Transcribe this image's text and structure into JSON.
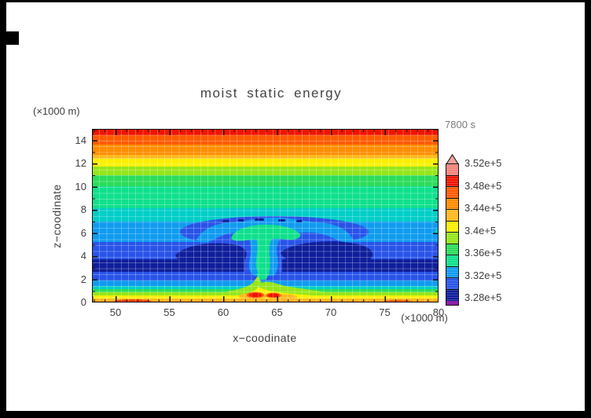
{
  "title": "moist static energy",
  "time_label": "7800 s",
  "axes": {
    "x": {
      "label": "x−coodinate",
      "unit_label": "(×1000 m)",
      "ticks": [
        "50",
        "55",
        "60",
        "65",
        "70",
        "75",
        "80"
      ]
    },
    "y": {
      "label": "z−coodinate",
      "unit_label": "(×1000 m)",
      "ticks": [
        "0",
        "2",
        "4",
        "6",
        "8",
        "10",
        "12",
        "14"
      ]
    }
  },
  "colorbar": {
    "labels": [
      "3.52e+5",
      "3.48e+5",
      "3.44e+5",
      "3.4e+5",
      "3.36e+5",
      "3.32e+5",
      "3.28e+5"
    ],
    "cap": {
      "color": "#F4A49E",
      "meaning": "> 3.52e+5"
    },
    "segments_top_to_bottom": [
      {
        "color": "#F2837B",
        "range": "3.50e+5 – 3.52e+5"
      },
      {
        "color": "#F01400",
        "range": "3.48e+5 – 3.50e+5"
      },
      {
        "color": "#FF5A00",
        "range": "3.46e+5 – 3.48e+5"
      },
      {
        "color": "#FF8C00",
        "range": "3.44e+5 – 3.46e+5"
      },
      {
        "color": "#FFB91E",
        "range": "3.42e+5 – 3.44e+5"
      },
      {
        "color": "#FAF000",
        "range": "3.40e+5 – 3.42e+5"
      },
      {
        "color": "#96E619",
        "range": "3.38e+5 – 3.40e+5"
      },
      {
        "color": "#2BDC5A",
        "range": "3.36e+5 – 3.38e+5"
      },
      {
        "color": "#0FE08C",
        "range": "3.34e+5 – 3.36e+5"
      },
      {
        "color": "#0F9BF0",
        "range": "3.32e+5 – 3.34e+5"
      },
      {
        "color": "#2853E8",
        "range": "3.30e+5 – 3.32e+5"
      },
      {
        "color": "#0F1E9B",
        "range": "3.28e+5 – 3.30e+5"
      }
    ],
    "stub": {
      "color": "#8C1EA8",
      "meaning": "< 3.28e+5"
    }
  },
  "chart_data": {
    "type": "heatmap",
    "subtype": "filled-contour",
    "title": "moist static energy",
    "time": "7800 s",
    "xlabel": "x−coodinate (×1000 m)",
    "ylabel": "z−coodinate (×1000 m)",
    "xlim": [
      47.8,
      80
    ],
    "ylim": [
      0,
      15
    ],
    "x_ticks": [
      50,
      55,
      60,
      65,
      70,
      75,
      80
    ],
    "y_ticks": [
      0,
      2,
      4,
      6,
      8,
      10,
      12,
      14
    ],
    "contour_levels_e5": [
      3.28,
      3.3,
      3.32,
      3.34,
      3.36,
      3.38,
      3.4,
      3.42,
      3.44,
      3.46,
      3.48,
      3.5,
      3.52
    ],
    "colorbar_tick_labels": [
      "3.52e+5",
      "3.48e+5",
      "3.44e+5",
      "3.4e+5",
      "3.36e+5",
      "3.32e+5",
      "3.28e+5"
    ],
    "grid": true,
    "legend_position": "right colorbar with overflow arrow cap",
    "background_profile_z_vs_value_e5": [
      [
        15.0,
        3.49
      ],
      [
        14.0,
        3.47
      ],
      [
        13.0,
        3.45
      ],
      [
        12.0,
        3.42
      ],
      [
        11.0,
        3.39
      ],
      [
        10.0,
        3.375
      ],
      [
        9.0,
        3.36
      ],
      [
        8.0,
        3.35
      ],
      [
        7.0,
        3.335
      ],
      [
        6.0,
        3.33
      ],
      [
        5.0,
        3.305
      ],
      [
        4.0,
        3.29
      ],
      [
        3.0,
        3.29
      ],
      [
        2.2,
        3.31
      ],
      [
        1.6,
        3.33
      ],
      [
        1.2,
        3.35
      ],
      [
        1.0,
        3.37
      ],
      [
        0.75,
        3.39
      ],
      [
        0.5,
        3.41
      ],
      [
        0.25,
        3.43
      ],
      [
        0.1,
        3.45
      ]
    ],
    "features": [
      {
        "name": "anvil warm anomaly (mushroom cap)",
        "x_range": [
          57.5,
          72.5
        ],
        "z_range": [
          5.3,
          6.8
        ],
        "value_e5": 3.36
      },
      {
        "name": "updraft stem",
        "x_range": [
          62.5,
          64.8
        ],
        "z_range": [
          2.6,
          5.7
        ],
        "value_e5": 3.35
      },
      {
        "name": "cold lobes flanking stem",
        "x_ranges": [
          [
            56,
            62
          ],
          [
            64.5,
            73.5
          ]
        ],
        "z_range": [
          3.0,
          5.5
        ],
        "value_e5": 3.285
      },
      {
        "name": "overshoot cool dashes above anvil",
        "z": 7.1,
        "value_e5": 3.3
      },
      {
        "name": "surface warm plumes",
        "x_range": [
          60,
          66
        ],
        "z_range": [
          0,
          1.5
        ],
        "max_value_e5": 3.49
      },
      {
        "name": "periodic anvil remnant at right edge",
        "x_range": [
          78.5,
          80
        ],
        "z_range": [
          5.5,
          6.3
        ],
        "value_e5": 3.34
      }
    ]
  }
}
